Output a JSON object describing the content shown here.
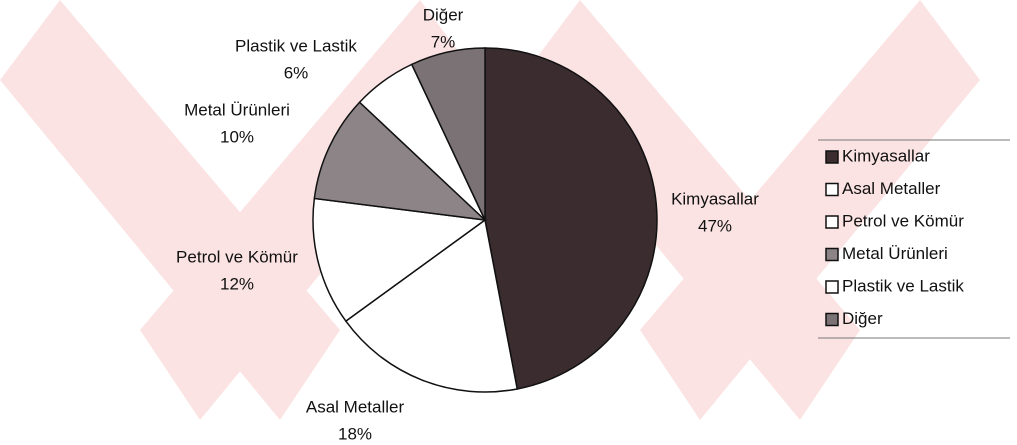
{
  "chart_data": {
    "type": "pie",
    "categories": [
      "Kimyasallar",
      "Asal Metaller",
      "Petrol ve Kömür",
      "Metal Ürünleri",
      "Plastik ve Lastik",
      "Diğer"
    ],
    "values": [
      47,
      18,
      12,
      10,
      6,
      7
    ],
    "value_labels": [
      "47%",
      "18%",
      "12%",
      "10%",
      "6%",
      "7%"
    ],
    "colors": [
      "#3b2c30",
      "#ffffff",
      "#ffffff",
      "#8c8486",
      "#ffffff",
      "#7a7274"
    ],
    "legend": "right"
  }
}
